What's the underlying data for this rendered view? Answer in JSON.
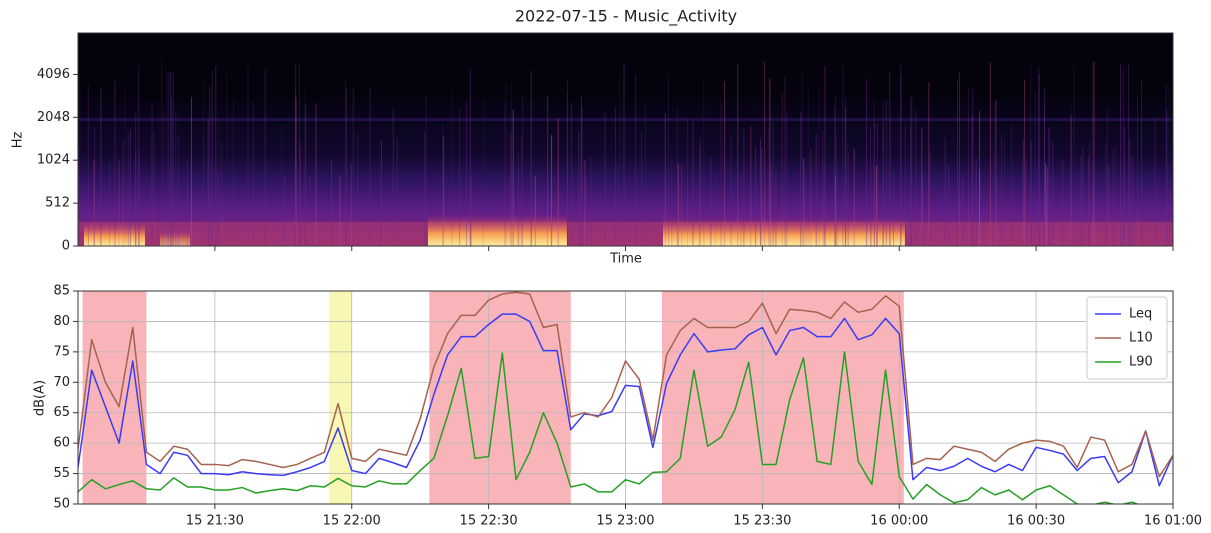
{
  "chart_data": [
    {
      "type": "spectrogram",
      "title": "2022-07-15 - Music_Activity",
      "ylabel": "Hz",
      "xlabel": "Time",
      "yscale": "symlog",
      "linthresh": 512,
      "ylim": [
        0,
        8000
      ],
      "yticks": [
        0,
        512,
        1024,
        2048,
        4096
      ]
    },
    {
      "type": "line",
      "ylabel": "dB(A)",
      "grid": true,
      "legend": "upper right",
      "xlim": [
        "15 21:00",
        "16 01:00"
      ],
      "xticks": [
        "15 21:30",
        "15 22:00",
        "15 22:30",
        "15 23:00",
        "15 23:30",
        "16 00:00",
        "16 00:30",
        "16 01:00"
      ],
      "ylim": [
        50,
        85
      ],
      "yticks": [
        50,
        55,
        60,
        65,
        70,
        75,
        80,
        85
      ],
      "highlights": [
        {
          "start": "15 21:01",
          "end": "15 21:15",
          "color": "#f8b4b8"
        },
        {
          "start": "15 21:55",
          "end": "15 22:00",
          "color": "#f8f8b4"
        },
        {
          "start": "15 22:17",
          "end": "15 22:48",
          "color": "#f8b4b8"
        },
        {
          "start": "15 23:08",
          "end": "16 00:01",
          "color": "#f8b4b8"
        }
      ],
      "x": [
        "15 21:00",
        "15 21:03",
        "15 21:06",
        "15 21:09",
        "15 21:12",
        "15 21:15",
        "15 21:18",
        "15 21:21",
        "15 21:24",
        "15 21:27",
        "15 21:30",
        "15 21:33",
        "15 21:36",
        "15 21:39",
        "15 21:42",
        "15 21:45",
        "15 21:48",
        "15 21:51",
        "15 21:54",
        "15 21:57",
        "15 22:00",
        "15 22:03",
        "15 22:06",
        "15 22:09",
        "15 22:12",
        "15 22:15",
        "15 22:18",
        "15 22:21",
        "15 22:24",
        "15 22:27",
        "15 22:30",
        "15 22:33",
        "15 22:36",
        "15 22:39",
        "15 22:42",
        "15 22:45",
        "15 22:48",
        "15 22:51",
        "15 22:54",
        "15 22:57",
        "15 23:00",
        "15 23:03",
        "15 23:06",
        "15 23:09",
        "15 23:12",
        "15 23:15",
        "15 23:18",
        "15 23:21",
        "15 23:24",
        "15 23:27",
        "15 23:30",
        "15 23:33",
        "15 23:36",
        "15 23:39",
        "15 23:42",
        "15 23:45",
        "15 23:48",
        "15 23:51",
        "15 23:54",
        "15 23:57",
        "16 00:00",
        "16 00:03",
        "16 00:06",
        "16 00:09",
        "16 00:12",
        "16 00:15",
        "16 00:18",
        "16 00:21",
        "16 00:24",
        "16 00:27",
        "16 00:30",
        "16 00:33",
        "16 00:36",
        "16 00:39",
        "16 00:42",
        "16 00:45",
        "16 00:48",
        "16 00:51",
        "16 00:54",
        "16 00:57",
        "16 01:00"
      ],
      "series": [
        {
          "name": "Leq",
          "color": "#3b3bf5",
          "values": [
            56,
            72,
            66,
            60,
            73.5,
            56.5,
            55,
            58.5,
            58,
            55,
            55,
            54.8,
            55.3,
            55,
            54.8,
            54.7,
            55.3,
            56,
            57,
            62.5,
            55.5,
            55,
            57.5,
            56.8,
            56,
            60.5,
            68,
            74.5,
            77.5,
            77.5,
            79.5,
            81.2,
            81.2,
            80,
            75.2,
            75.2,
            62.2,
            64.8,
            64.5,
            65.2,
            69.5,
            69.3,
            59.3,
            69.8,
            74.5,
            78,
            75,
            75.3,
            75.5,
            77.8,
            79,
            74.5,
            78.5,
            79,
            77.5,
            77.5,
            80.5,
            77,
            77.8,
            80.5,
            78,
            54,
            56,
            55.5,
            56.2,
            57.5,
            56.2,
            55.3,
            56.5,
            55.5,
            59.3,
            58.8,
            58.2,
            55.5,
            57.5,
            57.8,
            53.5,
            55.3,
            62,
            53,
            58
          ]
        },
        {
          "name": "L10",
          "color": "#a5634f",
          "values": [
            59,
            77,
            70,
            66,
            79,
            58.5,
            57,
            59.5,
            59,
            56.5,
            56.5,
            56.3,
            57.3,
            57,
            56.5,
            56,
            56.5,
            57.5,
            58.5,
            66.5,
            57.5,
            57,
            59,
            58.5,
            58,
            64,
            72.5,
            78,
            81,
            81,
            83.5,
            84.5,
            84.8,
            84.5,
            79,
            79.5,
            64.3,
            65,
            64.3,
            67.5,
            73.5,
            70.5,
            60.5,
            74.5,
            78.5,
            80.5,
            79,
            79,
            79,
            80,
            83,
            78,
            82,
            81.8,
            81.5,
            80.5,
            83.2,
            81.5,
            82,
            84.2,
            82.5,
            56.5,
            57.5,
            57.3,
            59.5,
            59,
            58.5,
            57,
            59,
            60,
            60.5,
            60.3,
            59.5,
            56,
            61,
            60.5,
            55.3,
            56.5,
            62,
            54.5,
            58
          ]
        },
        {
          "name": "L90",
          "color": "#25a025",
          "values": [
            52,
            54,
            52.5,
            53.2,
            53.8,
            52.5,
            52.3,
            54.3,
            52.8,
            52.8,
            52.3,
            52.3,
            52.7,
            51.8,
            52.2,
            52.5,
            52.2,
            53,
            52.8,
            54.2,
            53,
            52.8,
            53.8,
            53.3,
            53.3,
            55.5,
            57.5,
            64.5,
            72.3,
            57.5,
            57.8,
            74.8,
            54,
            58.5,
            65,
            60,
            52.8,
            53.3,
            52,
            52,
            54,
            53.3,
            55.2,
            55.3,
            57.5,
            72,
            59.5,
            61,
            65.5,
            73.3,
            56.5,
            56.5,
            67.2,
            74,
            57,
            56.5,
            75,
            57,
            53.2,
            72,
            54.5,
            50.8,
            53.2,
            51.5,
            50.2,
            50.7,
            52.7,
            51.5,
            52.3,
            50.7,
            52.3,
            53,
            51.5,
            50,
            49.8,
            50.3,
            49.8,
            50.3,
            49.5,
            49.8,
            49.5
          ]
        }
      ]
    }
  ]
}
